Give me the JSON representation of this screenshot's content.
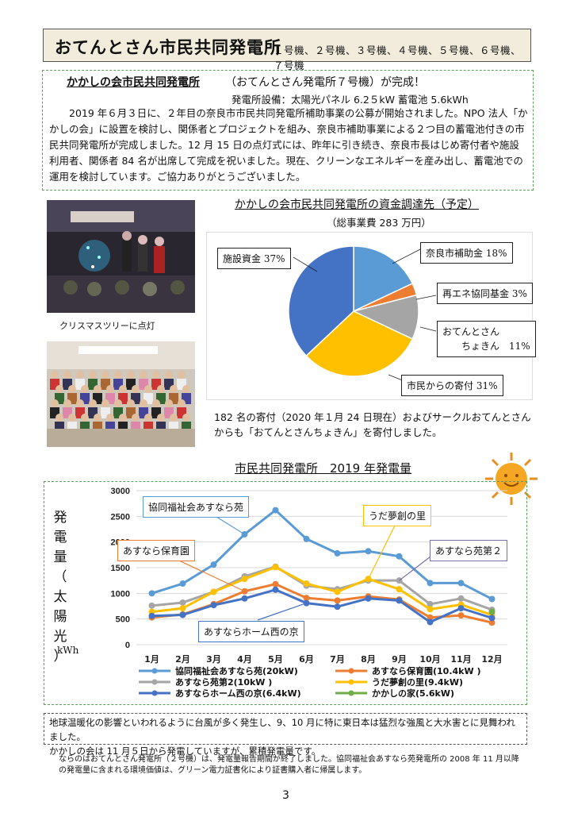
{
  "header": {
    "title": "おてんとさん市民共同発電所",
    "units": "１号機、２号機、３号機、４号機、５号機、６号機、７号機"
  },
  "news": {
    "title": "かかしの会市民共同発電所",
    "title_sub": "（おてんとさん発電所７号機）が完成！",
    "spec": "発電所設備：太陽光パネル 6.2５kW 蓄電池 5.6kWh",
    "body": "2019 年６月３日に、２年目の奈良市市民共同発電所補助事業の公募が開始されました。NPO 法人「かかしの会」に設置を検討し、関係者とプロジェクトを組み、奈良市補助事業による２つ目の蓄電池付きの市民共同発電所が完成しました。12 月 15 日の点灯式には、昨年に引き続き、奈良市長はじめ寄付者や施設利用者、関係者 84 名が出席して完成を祝いました。現在、クリーンなエネルギーを産み出し、蓄電池での運用を検討しています。ご協力ありがとうございました。"
  },
  "photos": {
    "caption1": "クリスマスツリーに点灯"
  },
  "pie": {
    "title": "かかしの会市民共同発電所の資金調達先（予定）",
    "subtitle": "（総事業費 283 万円）",
    "labels": {
      "nara": "奈良市補助金 18%",
      "saiene": "再エネ協同基金 3%",
      "chokin_1": "おてんとさん",
      "chokin_2": "ちょきん　11%",
      "kifu": "市民からの寄付 31%",
      "shisetsu": "施設資金 37%"
    },
    "note": "182 名の寄付（2020 年１月 24 日現在）およびサークルおてんとさんからも「おてんとさんちょきん」を寄付しました。"
  },
  "pie_data": {
    "slices": [
      {
        "name": "奈良市補助金",
        "value": 18,
        "color": "#5b9bd5"
      },
      {
        "name": "再エネ協同基金",
        "value": 3,
        "color": "#ed7d31"
      },
      {
        "name": "おてんとさんちょきん",
        "value": 11,
        "color": "#a5a5a5"
      },
      {
        "name": "市民からの寄付",
        "value": 31,
        "color": "#ffc000"
      },
      {
        "name": "施設資金",
        "value": 37,
        "color": "#4472c4"
      }
    ]
  },
  "chart": {
    "title": "市民共同発電所　2019 年発電量",
    "ylabel_chars": [
      "発",
      "電",
      "量",
      "（",
      "太",
      "陽",
      "光",
      "）"
    ],
    "yunit": "kWh",
    "callouts": {
      "asunara_en": "協同福祉会あすなら苑",
      "uda": "うだ夢創の里",
      "hoikuen": "あすなら保育園",
      "en2": "あすなら苑第２",
      "home": "あすならホーム西の京"
    }
  },
  "chart_data": {
    "type": "line",
    "categories": [
      "1月",
      "2月",
      "3月",
      "4月",
      "5月",
      "6月",
      "7月",
      "8月",
      "9月",
      "10月",
      "11月",
      "12月"
    ],
    "ylim": [
      0,
      3000
    ],
    "yticks": [
      0,
      500,
      1000,
      1500,
      2000,
      2500,
      3000
    ],
    "series": [
      {
        "name": "協同福祉会あすなら苑(20kW)",
        "color": "#5b9bd5",
        "values": [
          1000,
          1190,
          1560,
          2150,
          2620,
          2060,
          1780,
          1820,
          1720,
          1200,
          1200,
          890
        ]
      },
      {
        "name": "あすなら保育園(10.4kW )",
        "color": "#ed7d31",
        "values": [
          530,
          590,
          790,
          1040,
          1180,
          910,
          860,
          940,
          880,
          530,
          570,
          430
        ]
      },
      {
        "name": "あすなら苑第2(10kW )",
        "color": "#a5a5a5",
        "values": [
          760,
          820,
          1030,
          1330,
          1520,
          1150,
          1080,
          1250,
          1250,
          790,
          900,
          680
        ]
      },
      {
        "name": "うだ夢創の里(9.4kW)",
        "color": "#ffc000",
        "values": [
          640,
          710,
          1030,
          1280,
          1510,
          1190,
          1030,
          1280,
          1080,
          690,
          780,
          580
        ]
      },
      {
        "name": "あすならホーム西の京(6.4kW)",
        "color": "#4472c4",
        "values": [
          560,
          580,
          770,
          900,
          1070,
          810,
          740,
          900,
          860,
          440,
          710,
          520
        ]
      },
      {
        "name": "かかしの家(5.6kW)",
        "color": "#70ad47",
        "values": [
          null,
          null,
          null,
          null,
          null,
          null,
          null,
          null,
          null,
          null,
          null,
          640
        ]
      }
    ]
  },
  "summary": {
    "line1": "地球温暖化の影響といわれるように台風が多く発生し、9、10 月に特に東日本は猛烈な強風と大水害とに見舞われました。",
    "line2": "かかしの会は 11 月５日から発電していますが、累積発電量です。"
  },
  "footnote": "ならのはおてんとさん発電所（２号機）は、発電量報告期間が終了しました。協同福祉会あすなら苑発電所の 2008 年 11 月以降の発電量に含まれる環境価値は、グリーン電力証書化により証書購入者に帰属します。",
  "page_number": "3"
}
